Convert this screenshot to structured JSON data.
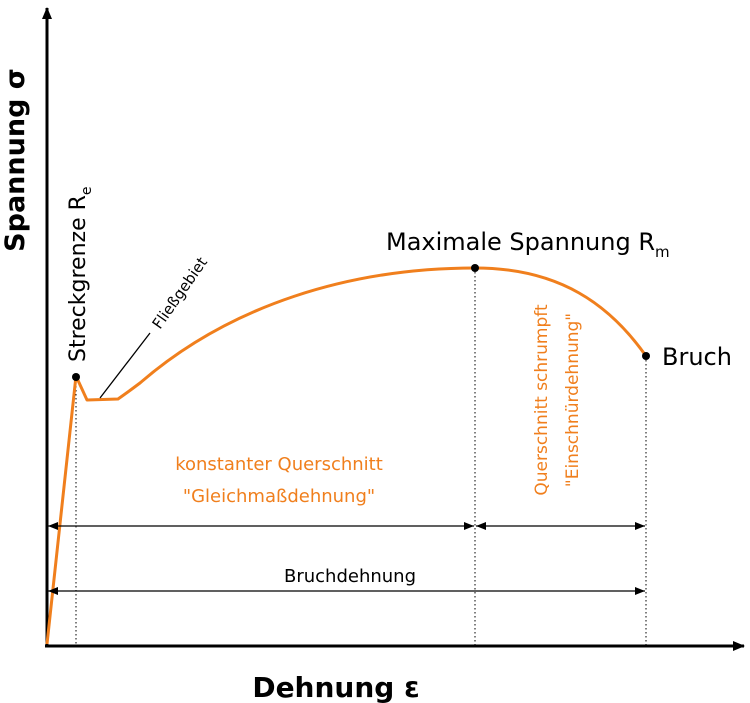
{
  "axes": {
    "y_label": "Spannung σ",
    "x_label": "Dehnung ε"
  },
  "labels": {
    "yield_point": "Streckgrenze R",
    "yield_point_sub": "e",
    "flow_region": "Fließgebiet",
    "max_stress": "Maximale Spannung R",
    "max_stress_sub": "m",
    "fracture": "Bruch",
    "uniform_line1": "konstanter Querschnitt",
    "uniform_line2": "\"Gleichmaßdehnung\"",
    "necking_line1": "Querschnitt schrumpft",
    "necking_line2": "\"Einschnürdehnung\"",
    "elongation_at_break": "Bruchdehnung"
  },
  "colors": {
    "curve": "#f07f1d",
    "axis": "#000000",
    "text": "#000000"
  },
  "icons": {
    "axis_arrowheads": "arrow-icon",
    "dimension_arrowheads": "arrow-icon"
  }
}
